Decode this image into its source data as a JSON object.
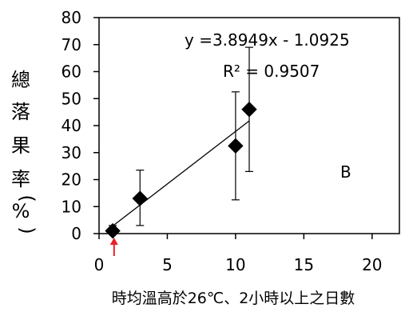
{
  "chart_data": {
    "type": "scatter",
    "panel_label": "B",
    "xlabel": "時均溫高於26℃、2小時以上之日數",
    "ylabel_chars": [
      "總",
      "落",
      "果",
      "率",
      "(",
      "%",
      ")"
    ],
    "xlim": [
      0,
      22
    ],
    "ylim": [
      0,
      80
    ],
    "x_ticks": [
      0,
      5,
      10,
      15,
      20
    ],
    "y_ticks": [
      0,
      10,
      20,
      30,
      40,
      50,
      60,
      70,
      80
    ],
    "grid": false,
    "points": [
      {
        "x": 1,
        "y": 1,
        "err_low": 0,
        "err_high": 3
      },
      {
        "x": 3,
        "y": 13,
        "err_low": 3,
        "err_high": 23.5
      },
      {
        "x": 10,
        "y": 32.5,
        "err_low": 12.5,
        "err_high": 52.5
      },
      {
        "x": 11,
        "y": 46,
        "err_low": 23,
        "err_high": 69
      }
    ],
    "trendline": {
      "slope": 3.8949,
      "intercept": -1.0925,
      "x_start": 1,
      "x_end": 11
    },
    "equation_text": "y =3.8949x - 1.0925",
    "r2_text": "R² = 0.9507",
    "marker_color": "#000000",
    "arrow_color": "#e8202a",
    "arrow_at_x": 1.1
  }
}
